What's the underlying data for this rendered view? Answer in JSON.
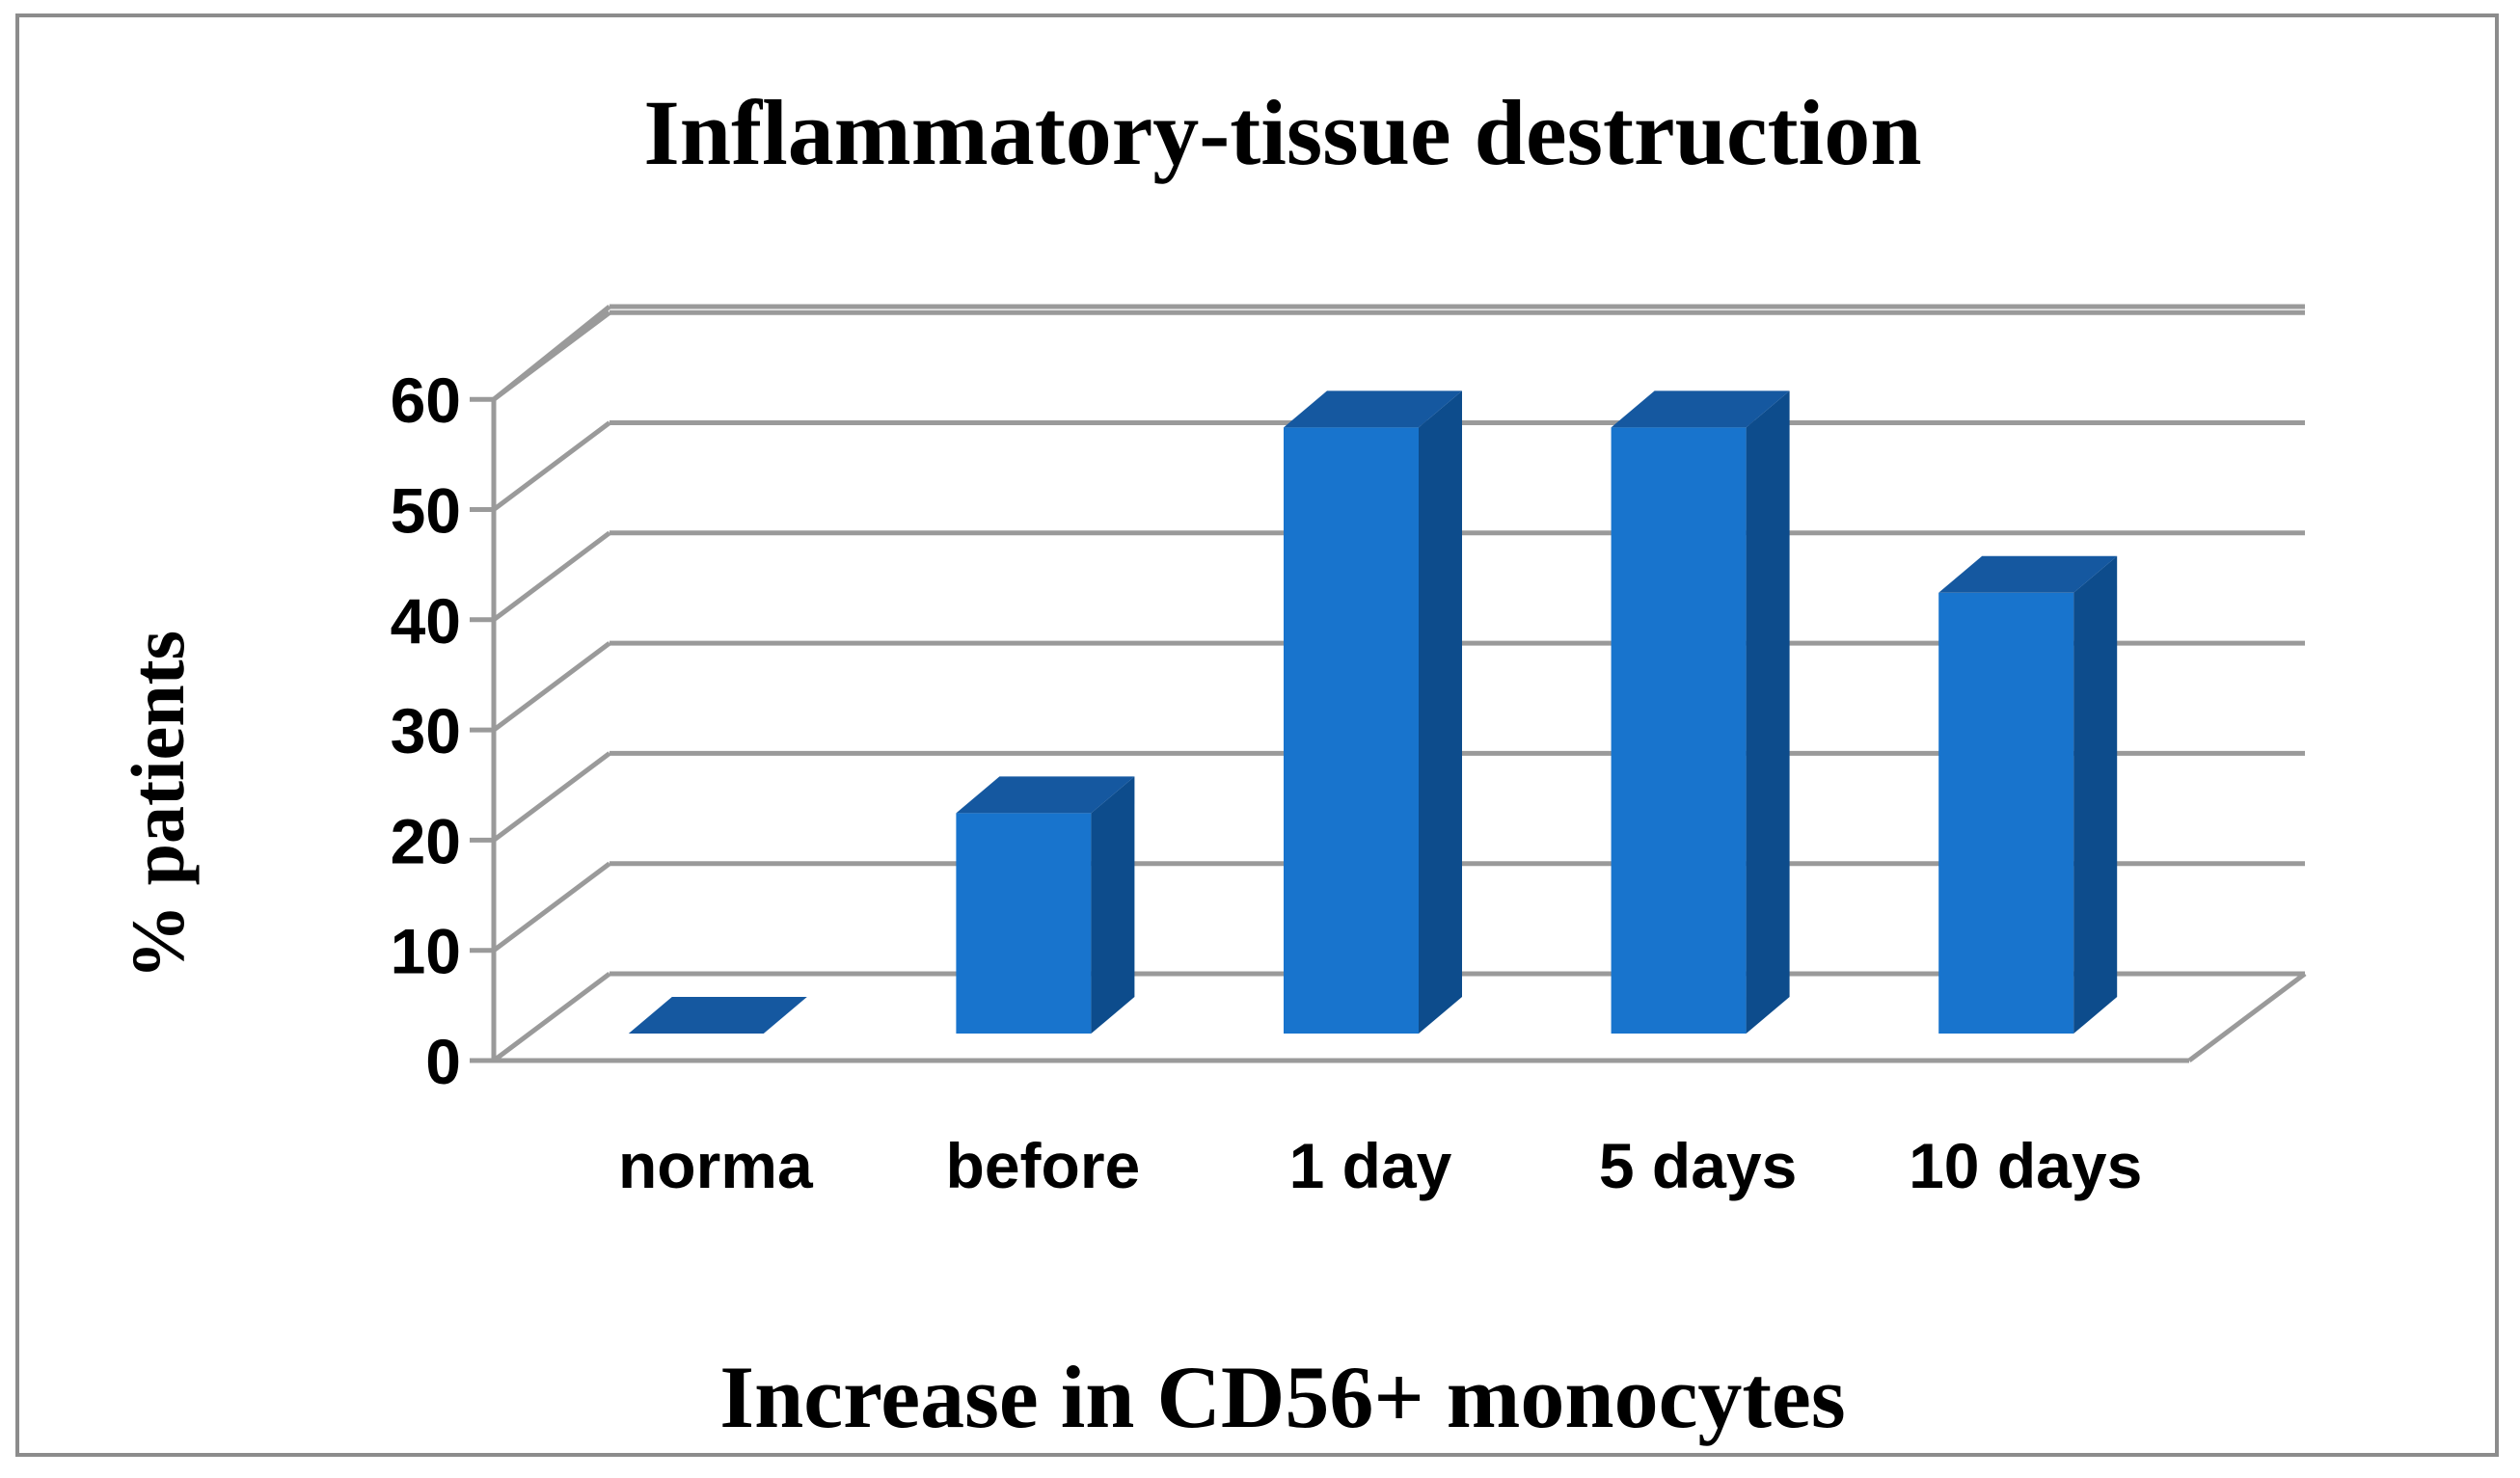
{
  "chart_data": {
    "type": "bar",
    "title": "Inflammatory-tissue destruction",
    "xlabel": "Increase in CD56+ monocytes",
    "ylabel": "% patients",
    "categories": [
      "norma",
      "before",
      "1 day",
      "5 days",
      "10 days"
    ],
    "values": [
      0,
      20,
      55,
      55,
      40
    ],
    "ylim": [
      0,
      60
    ],
    "yticks": [
      "0",
      "10",
      "20",
      "30",
      "40",
      "50",
      "60"
    ],
    "grid": true,
    "style": "3d-column",
    "colors": {
      "bar_front": "#1874CD",
      "bar_top": "#1558A0",
      "bar_side": "#0D4C8C",
      "grid": "#9a9a9a",
      "text": "#000000"
    }
  }
}
